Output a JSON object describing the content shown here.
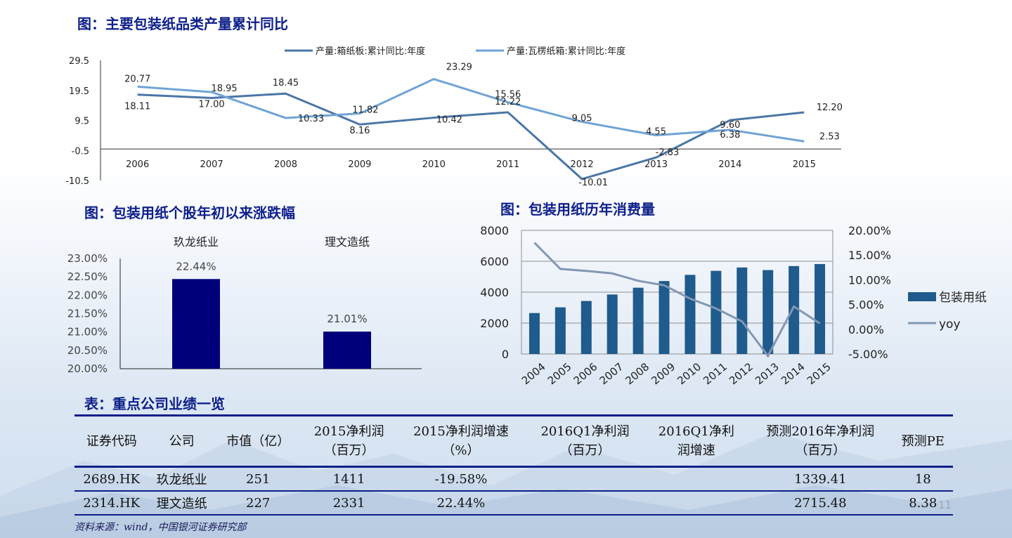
{
  "titles": {
    "top": "图：主要包装纸品类产量累计同比",
    "left": "图：包装用纸个股年初以来涨跌幅",
    "right": "图：包装用纸历年消费量",
    "table": "表：重点公司业绩一览"
  },
  "chart_data": [
    {
      "type": "line",
      "x": [
        "2006",
        "2007",
        "2008",
        "2009",
        "2010",
        "2011",
        "2012",
        "2013",
        "2014",
        "2015"
      ],
      "series": [
        {
          "name": "产量:箱纸板:累计同比:年度",
          "values": [
            18.11,
            17.0,
            18.45,
            8.16,
            10.42,
            12.22,
            -10.01,
            -2.83,
            9.6,
            12.2
          ],
          "color": "#4a76a8"
        },
        {
          "name": "产量:瓦楞纸箱:累计同比:年度",
          "values": [
            20.77,
            18.95,
            10.33,
            11.82,
            23.29,
            15.56,
            9.05,
            4.55,
            6.38,
            2.53
          ],
          "color": "#6fa3d6"
        }
      ],
      "y_ticks": [
        "29.5",
        "19.5",
        "9.5",
        "-0.5",
        "-10.5"
      ],
      "ylim": [
        -10.5,
        29.5
      ],
      "labels": [
        "18.11",
        "17.00",
        "18.45",
        "8.16",
        "10.42",
        "12.22",
        "-10.01",
        "-2.83",
        "9.60",
        "12.20",
        "20.77",
        "18.95",
        "10.33",
        "11.82",
        "23.29",
        "15.56",
        "9.05",
        "4.55",
        "6.38",
        "2.53"
      ],
      "legend": "top"
    },
    {
      "type": "bar",
      "categories": [
        "玖龙纸业",
        "理文造纸"
      ],
      "values": [
        22.44,
        21.01
      ],
      "value_labels": [
        "22.44%",
        "21.01%"
      ],
      "y_ticks": [
        "23.00%",
        "22.50%",
        "22.00%",
        "21.50%",
        "21.00%",
        "20.50%",
        "20.00%"
      ],
      "ylim": [
        20.0,
        23.0
      ],
      "color": "#00007a",
      "category_position": "top"
    },
    {
      "type": "bar",
      "categories": [
        "2004",
        "2005",
        "2006",
        "2007",
        "2008",
        "2009",
        "2010",
        "2011",
        "2012",
        "2013",
        "2014",
        "2015"
      ],
      "series": [
        {
          "name": "包装用纸",
          "values": [
            2650,
            3020,
            3430,
            3850,
            4290,
            4720,
            5120,
            5380,
            5600,
            5430,
            5690,
            5820
          ],
          "axis": "left",
          "color": "#1f5b8c"
        },
        {
          "name": "yoy",
          "values": [
            17.5,
            12.2,
            11.8,
            11.3,
            9.8,
            8.9,
            6.2,
            4.2,
            1.6,
            -5.4,
            4.6,
            1.2
          ],
          "axis": "right",
          "type": "line",
          "color": "#8297b3"
        }
      ],
      "left_ticks": [
        "8000",
        "6000",
        "4000",
        "2000",
        "0"
      ],
      "right_ticks": [
        "20.00%",
        "15.00%",
        "10.00%",
        "5.00%",
        "0.00%",
        "-5.00%"
      ],
      "ylim_left": [
        0,
        8000
      ],
      "ylim_right": [
        -5,
        20
      ],
      "legend": "right"
    }
  ],
  "table": {
    "headers": [
      [
        "证券代码"
      ],
      [
        "公司"
      ],
      [
        "市值（亿）"
      ],
      [
        "2015净利润",
        "（百万）"
      ],
      [
        "2015净利润增速",
        "（%）"
      ],
      [
        "2016Q1净利润",
        "（百万）"
      ],
      [
        "2016Q1净利",
        "润增速"
      ],
      [
        "预测2016年净利润",
        "（百万）"
      ],
      [
        "预测PE"
      ]
    ],
    "rows": [
      [
        "2689.HK",
        "玖龙纸业",
        "251",
        "1411",
        "-19.58%",
        "",
        "",
        "1339.41",
        "18"
      ],
      [
        "2314.HK",
        "理文造纸",
        "227",
        "2331",
        "22.44%",
        "",
        "",
        "2715.48",
        "8.38"
      ]
    ]
  },
  "page_number": "11",
  "source": "资料来源：wind，中国银河证券研究部"
}
